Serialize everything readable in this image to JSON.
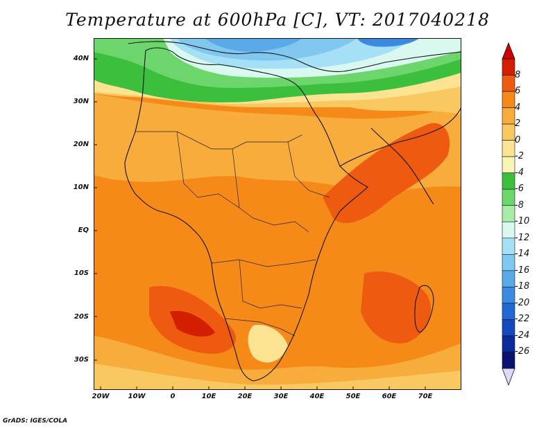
{
  "title": "Temperature at 600hPa [C], VT: 2017040218",
  "credit": "GrADS: IGES/COLA",
  "axes": {
    "lat_ticks": [
      "40N",
      "30N",
      "20N",
      "10N",
      "EQ",
      "10S",
      "20S",
      "30S"
    ],
    "lon_ticks": [
      "20W",
      "10W",
      "0",
      "10E",
      "20E",
      "30E",
      "40E",
      "50E",
      "60E",
      "70E"
    ]
  },
  "colorbar": {
    "labels": [
      "8",
      "6",
      "4",
      "2",
      "0",
      "-2",
      "-4",
      "-6",
      "-8",
      "-10",
      "-12",
      "-14",
      "-16",
      "-18",
      "-20",
      "-22",
      "-24",
      "-26"
    ],
    "colors": [
      "#d41e00",
      "#ee5a10",
      "#f58a18",
      "#f7ac3c",
      "#f9c860",
      "#fbe392",
      "#f9f4b8",
      "#3cbf3c",
      "#6cd66c",
      "#a8eca8",
      "#d8f8f0",
      "#a6e0f6",
      "#80c8f0",
      "#5aaaea",
      "#3a8ae0",
      "#2268d4",
      "#1448bc",
      "#0a2a9a",
      "#0a1470"
    ],
    "top_color": "#cc0000",
    "bottom_color": "#e0d8f8"
  }
}
